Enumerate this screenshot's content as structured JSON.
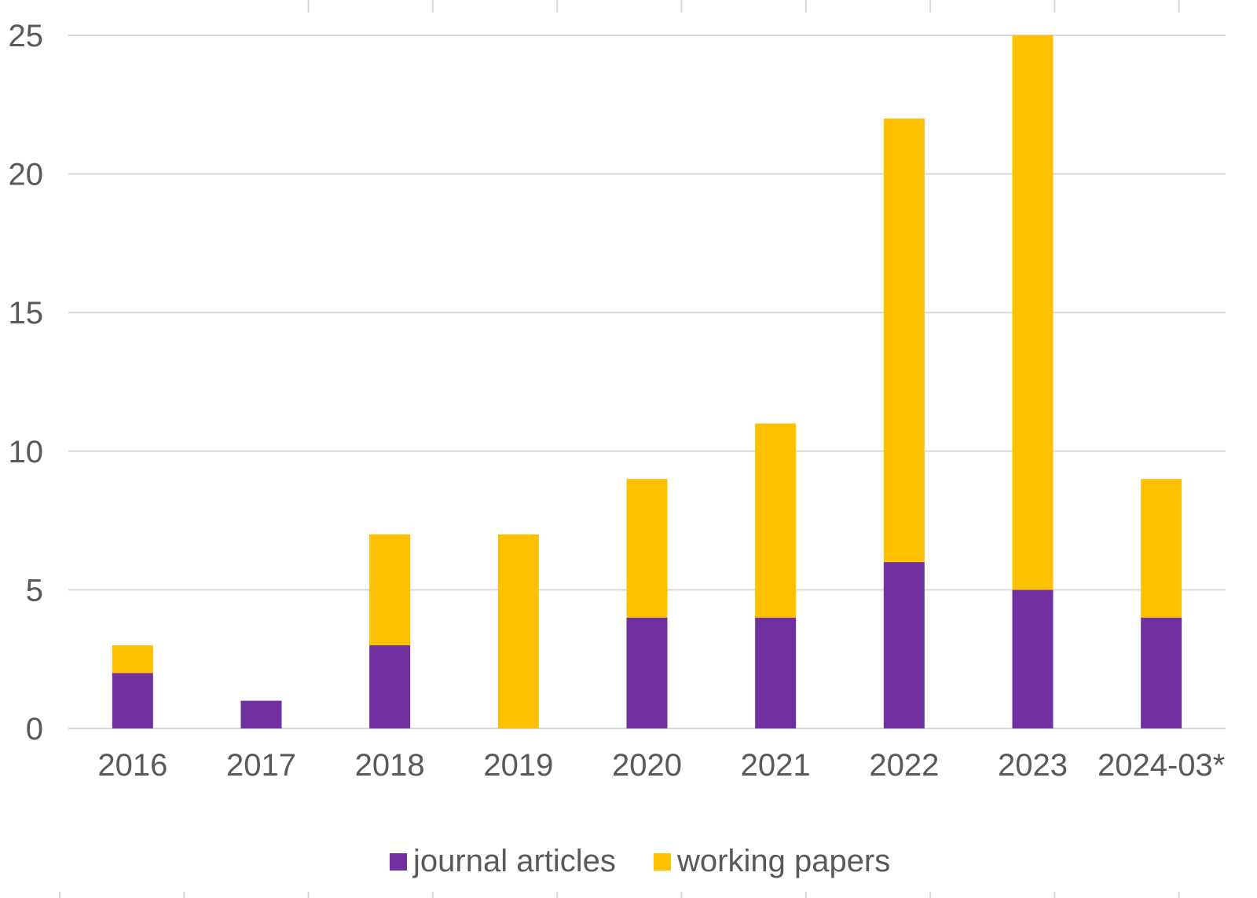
{
  "chart_data": {
    "type": "bar",
    "stacked": true,
    "categories": [
      "2016",
      "2017",
      "2018",
      "2019",
      "2020",
      "2021",
      "2022",
      "2023",
      "2024-03*"
    ],
    "series": [
      {
        "name": "journal articles",
        "color": "#7030A0",
        "values": [
          2,
          1,
          3,
          0,
          4,
          4,
          6,
          5,
          4
        ]
      },
      {
        "name": "working papers",
        "color": "#FFC000",
        "values": [
          1,
          0,
          4,
          7,
          5,
          7,
          16,
          20,
          5
        ]
      }
    ],
    "ylim": [
      0,
      25
    ],
    "yticks": [
      0,
      5,
      10,
      15,
      20,
      25
    ],
    "grid": true,
    "legend_position": "bottom",
    "title": "",
    "xlabel": "",
    "ylabel": ""
  }
}
